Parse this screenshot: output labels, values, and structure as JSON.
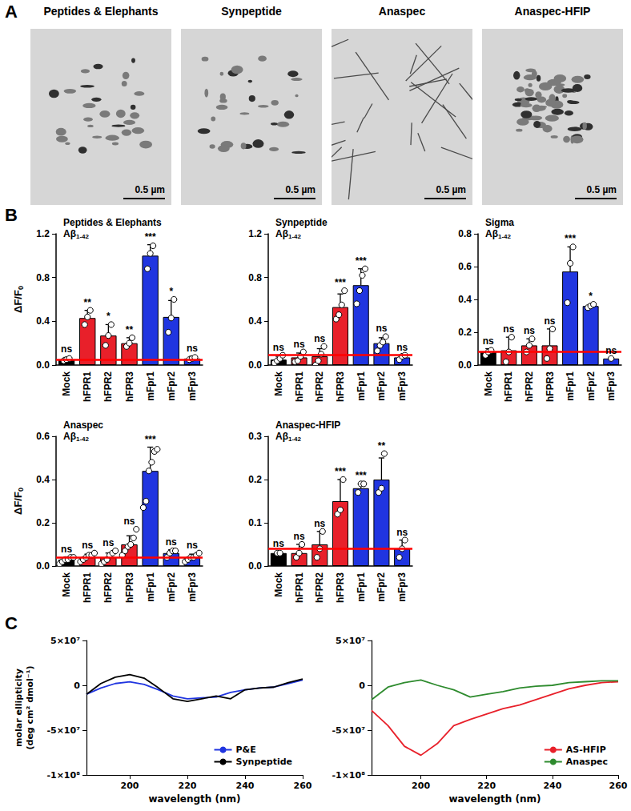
{
  "panel_labels": [
    "A",
    "B",
    "C"
  ],
  "micrographs": [
    {
      "title": "Peptides & Elephants",
      "scale_bar": "0.5 µm"
    },
    {
      "title": "Synpeptide",
      "scale_bar": "0.5 µm"
    },
    {
      "title": "Anaspec",
      "scale_bar": "0.5 µm"
    },
    {
      "title": "Anaspec-HFIP",
      "scale_bar": "0.5 µm"
    }
  ],
  "chart_data": [
    {
      "type": "bar",
      "title": "Peptides & Elephants",
      "subtitle": "Aβ1-42",
      "ylabel": "ΔF/F0",
      "categories": [
        "Mock",
        "hFPR1",
        "hFPR2",
        "hFPR3",
        "mFpr1",
        "mFpr2",
        "mFpr3"
      ],
      "values": [
        0.05,
        0.43,
        0.27,
        0.2,
        1.0,
        0.44,
        0.06
      ],
      "colors": [
        "#000000",
        "#e8202a",
        "#e8202a",
        "#e8202a",
        "#2035e0",
        "#2035e0",
        "#2035e0"
      ],
      "error": [
        0.02,
        0.07,
        0.1,
        0.05,
        0.1,
        0.15,
        0.02
      ],
      "points": [
        [
          0.04,
          0.05,
          0.06
        ],
        [
          0.37,
          0.44,
          0.5
        ],
        [
          0.18,
          0.27,
          0.37
        ],
        [
          0.17,
          0.2,
          0.25
        ],
        [
          0.88,
          1.02,
          1.09
        ],
        [
          0.3,
          0.43,
          0.6
        ],
        [
          0.05,
          0.06,
          0.07
        ]
      ],
      "significance": [
        "ns",
        "**",
        "*",
        "**",
        "***",
        "*",
        "ns"
      ],
      "reference_line": {
        "value": 0.05,
        "color": "#ff0000"
      },
      "ylim": [
        0,
        1.2
      ],
      "yticks": [
        {
          "value": 0,
          "label": "0.0"
        },
        0.4,
        0.8,
        1.2
      ]
    },
    {
      "type": "bar",
      "title": "Synpeptide",
      "subtitle": "Aβ1-42",
      "categories": [
        "Mock",
        "hFPR1",
        "hFPR2",
        "hFPR3",
        "mFpr1",
        "mFpr2",
        "mFpr3"
      ],
      "values": [
        0.05,
        0.07,
        0.08,
        0.53,
        0.73,
        0.2,
        0.07
      ],
      "colors": [
        "#000000",
        "#e8202a",
        "#e8202a",
        "#e8202a",
        "#2035e0",
        "#2035e0",
        "#2035e0"
      ],
      "error": [
        0.03,
        0.04,
        0.07,
        0.12,
        0.15,
        0.05,
        0.02
      ],
      "points": [
        [
          0.02,
          0.04,
          0.06,
          0.09
        ],
        [
          0.03,
          0.04,
          0.08,
          0.12
        ],
        [
          0.0,
          0.04,
          0.1,
          0.17
        ],
        [
          0.42,
          0.46,
          0.55,
          0.68
        ],
        [
          0.56,
          0.68,
          0.82,
          0.88
        ],
        [
          0.13,
          0.18,
          0.21,
          0.26
        ],
        [
          0.05,
          0.08,
          0.09
        ]
      ],
      "significance": [
        "ns",
        "ns",
        "ns",
        "***",
        "***",
        "ns",
        "ns"
      ],
      "reference_line": {
        "value": 0.09,
        "color": "#ff0000"
      },
      "ylim": [
        0,
        1.2
      ],
      "yticks": [
        {
          "value": 0,
          "label": "0.0"
        },
        0.4,
        0.8,
        1.2
      ]
    },
    {
      "type": "bar",
      "title": "Sigma",
      "subtitle": "Aβ1-42",
      "categories": [
        "Mock",
        "hFPR1",
        "hFPR2",
        "hFPR3",
        "mFpr1",
        "mFpr2",
        "mFpr3"
      ],
      "values": [
        0.08,
        0.09,
        0.12,
        0.12,
        0.57,
        0.36,
        0.04
      ],
      "colors": [
        "#000000",
        "#e8202a",
        "#e8202a",
        "#e8202a",
        "#2035e0",
        "#2035e0",
        "#2035e0"
      ],
      "error": [
        0.02,
        0.08,
        0.04,
        0.1,
        0.15,
        0.01,
        0.0
      ],
      "points": [
        [
          0.06,
          0.08,
          0.09
        ],
        [
          0.02,
          0.08,
          0.17
        ],
        [
          0.08,
          0.12,
          0.16
        ],
        [
          0.04,
          0.1,
          0.22
        ],
        [
          0.38,
          0.62,
          0.72
        ],
        [
          0.35,
          0.36,
          0.37
        ],
        [
          0.04
        ]
      ],
      "significance": [
        "ns",
        "ns",
        "ns",
        "ns",
        "***",
        "*",
        "ns"
      ],
      "reference_line": {
        "value": 0.08,
        "color": "#ff0000"
      },
      "ylim": [
        0,
        0.8
      ],
      "yticks": [
        {
          "value": 0,
          "label": "0.0"
        },
        0.2,
        0.4,
        0.6,
        0.8
      ]
    },
    {
      "type": "bar",
      "title": "Anaspec",
      "subtitle": "Aβ1-42",
      "ylabel": "ΔF/F0",
      "categories": [
        "Mock",
        "hFPR1",
        "hFPR2",
        "hFPR3",
        "mFpr1",
        "mFpr2",
        "mFpr3"
      ],
      "values": [
        0.03,
        0.04,
        0.04,
        0.1,
        0.44,
        0.06,
        0.04
      ],
      "colors": [
        "#000000",
        "#e8202a",
        "#e8202a",
        "#e8202a",
        "#2035e0",
        "#2035e0",
        "#2035e0"
      ],
      "error": [
        0.01,
        0.015,
        0.02,
        0.04,
        0.11,
        0.015,
        0.015
      ],
      "points": [
        [
          0.01,
          0.02,
          0.03,
          0.03,
          0.04,
          0.04
        ],
        [
          0.02,
          0.03,
          0.04,
          0.05,
          0.05,
          0.06
        ],
        [
          0.01,
          0.02,
          0.03,
          0.05,
          0.06,
          0.07
        ],
        [
          0.05,
          0.07,
          0.09,
          0.1,
          0.13,
          0.17
        ],
        [
          0.27,
          0.3,
          0.44,
          0.48,
          0.53,
          0.54
        ],
        [
          0.04,
          0.06,
          0.07,
          0.07
        ],
        [
          0.02,
          0.03,
          0.04,
          0.04,
          0.05,
          0.06
        ]
      ],
      "significance": [
        "ns",
        "ns",
        "ns",
        "ns",
        "***",
        "ns",
        "ns"
      ],
      "reference_line": {
        "value": 0.045,
        "color": "#ff0000"
      },
      "ylim": [
        0,
        0.6
      ],
      "yticks": [
        {
          "value": 0,
          "label": "0.0"
        },
        0.2,
        0.4,
        0.6
      ]
    },
    {
      "type": "bar",
      "title": "Anaspec-HFIP",
      "subtitle": "Aβ1-42",
      "categories": [
        "Mock",
        "hFPR1",
        "hFPR2",
        "hFPR3",
        "mFpr1",
        "mFpr2",
        "mFpr3"
      ],
      "values": [
        0.03,
        0.03,
        0.05,
        0.15,
        0.18,
        0.2,
        0.04
      ],
      "colors": [
        "#000000",
        "#e8202a",
        "#e8202a",
        "#e8202a",
        "#2035e0",
        "#2035e0",
        "#2035e0"
      ],
      "error": [
        0.003,
        0.02,
        0.03,
        0.05,
        0.01,
        0.05,
        0.02
      ],
      "points": [
        [
          0.03,
          0.03
        ],
        [
          0.02,
          0.03,
          0.05
        ],
        [
          0.02,
          0.04,
          0.08
        ],
        [
          0.12,
          0.13,
          0.2
        ],
        [
          0.17,
          0.19,
          0.19
        ],
        [
          0.17,
          0.18,
          0.26
        ],
        [
          0.02,
          0.04,
          0.06
        ]
      ],
      "significance": [
        "ns",
        "ns",
        "ns",
        "***",
        "***",
        "**",
        "ns"
      ],
      "reference_line": {
        "value": 0.037,
        "color": "#ff0000"
      },
      "ylim": [
        0,
        0.3
      ],
      "yticks": [
        {
          "value": 0,
          "label": "0.0"
        },
        0.1,
        0.2,
        0.3
      ]
    },
    {
      "type": "line",
      "xlabel": "wavelength (nm)",
      "ylabel": "molar ellipticity (deg cm² dmol⁻¹)",
      "x": [
        185,
        190,
        195,
        200,
        205,
        210,
        215,
        220,
        225,
        230,
        235,
        240,
        245,
        250,
        255,
        260
      ],
      "series": [
        {
          "name": "P&E",
          "color": "#2035e0",
          "values": [
            -10000000,
            -3000000,
            2000000,
            4000000,
            1000000,
            -5000000,
            -12000000,
            -15000000,
            -14000000,
            -13000000,
            -8000000,
            -5000000,
            -3000000,
            -2000000,
            2000000,
            6000000
          ]
        },
        {
          "name": "Synpeptide",
          "color": "#000000",
          "values": [
            -10000000,
            2000000,
            9000000,
            12000000,
            8000000,
            -3000000,
            -15000000,
            -18000000,
            -15000000,
            -12000000,
            -15000000,
            -5000000,
            -3000000,
            -2000000,
            3000000,
            7000000
          ]
        }
      ],
      "legend": "lower right",
      "xlim": [
        185,
        260
      ],
      "xticks": [
        200,
        220,
        240,
        260
      ],
      "ylim": [
        -100000000,
        50000000
      ],
      "yticks": [
        {
          "value": -100000000,
          "label": "-1×10⁸"
        },
        {
          "value": -50000000,
          "label": "-5×10⁷"
        },
        0,
        {
          "value": 50000000,
          "label": "5×10⁷"
        }
      ]
    },
    {
      "type": "line",
      "xlabel": "wavelength (nm)",
      "x": [
        185,
        190,
        195,
        200,
        205,
        210,
        215,
        220,
        225,
        230,
        235,
        240,
        245,
        250,
        255,
        260
      ],
      "series": [
        {
          "name": "AS-HFIP",
          "color": "#e8202a",
          "values": [
            -28000000,
            -45000000,
            -68000000,
            -78000000,
            -65000000,
            -45000000,
            -38000000,
            -32000000,
            -26000000,
            -22000000,
            -16000000,
            -10000000,
            -4000000,
            0,
            3000000,
            4000000
          ]
        },
        {
          "name": "Anaspec",
          "color": "#2e8b2e",
          "values": [
            -16000000,
            -2000000,
            3000000,
            6000000,
            0,
            -5000000,
            -13000000,
            -10000000,
            -7000000,
            -3000000,
            -1000000,
            0,
            3000000,
            4000000,
            5000000,
            5000000
          ]
        }
      ],
      "legend": "lower right",
      "xlim": [
        185,
        260
      ],
      "xticks": [
        200,
        220,
        240,
        260
      ],
      "ylim": [
        -100000000,
        50000000
      ],
      "yticks": [
        {
          "value": -100000000,
          "label": "-1×10⁸"
        },
        {
          "value": -50000000,
          "label": "-5×10⁷"
        },
        0,
        {
          "value": 50000000,
          "label": "5×10⁷"
        }
      ]
    }
  ]
}
